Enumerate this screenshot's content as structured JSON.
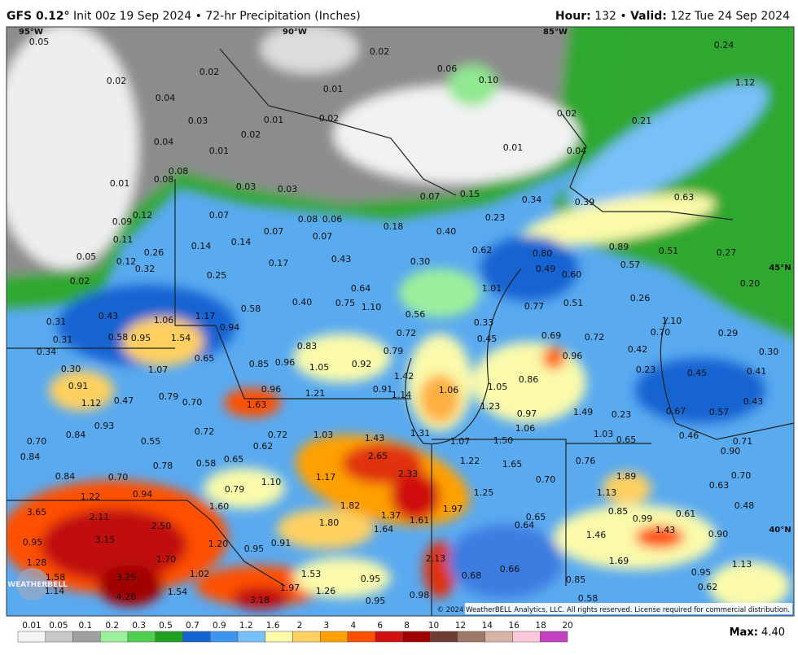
{
  "header": {
    "model": "GFS 0.12°",
    "init": "Init 00z 19 Sep 2024 • 72-hr Precipitation (Inches)",
    "hour_label": "Hour:",
    "hour": "132",
    "sep": "•",
    "valid_label": "Valid:",
    "valid": "12z Tue 24 Sep 2024"
  },
  "map": {
    "lon_labels": [
      "95°W",
      "90°W",
      "85°W"
    ],
    "lat_labels": [
      "45°N",
      "40°N"
    ],
    "values": [
      "0.05",
      "0.02",
      "0.04",
      "0.02",
      "0.02",
      "0.06",
      "0.10",
      "0.01",
      "0.02",
      "0.01",
      "0.03",
      "0.02",
      "0.04",
      "0.01",
      "0.01",
      "0.08",
      "0.08",
      "0.03",
      "0.03",
      "0.24",
      "1.12",
      "0.21",
      "0.02",
      "0.01",
      "0.04",
      "0.07",
      "0.15",
      "0.34",
      "0.39",
      "0.63",
      "0.09",
      "0.12",
      "0.07",
      "0.08",
      "0.06",
      "0.07",
      "0.07",
      "0.18",
      "0.23",
      "0.40",
      "0.11",
      "0.14",
      "0.14",
      "0.05",
      "0.26",
      "0.12",
      "0.32",
      "0.17",
      "0.43",
      "0.30",
      "0.62",
      "0.89",
      "0.51",
      "0.57",
      "0.27",
      "0.80",
      "0.49",
      "0.60",
      "0.02",
      "0.25",
      "0.20",
      "1.01",
      "0.64",
      "0.40",
      "0.75",
      "1.10",
      "0.77",
      "0.51",
      "0.26",
      "0.58",
      "0.56",
      "1.10",
      "0.31",
      "0.43",
      "1.06",
      "1.17",
      "0.33",
      "0.94",
      "0.72",
      "0.70",
      "0.29",
      "0.31",
      "0.58",
      "0.95",
      "1.54",
      "0.45",
      "0.69",
      "0.72",
      "0.34",
      "0.83",
      "0.79",
      "0.42",
      "0.30",
      "0.65",
      "0.85",
      "0.96",
      "1.05",
      "0.92",
      "0.96",
      "0.30",
      "1.07",
      "1.42",
      "0.86",
      "0.23",
      "0.45",
      "0.41",
      "0.91",
      "0.96",
      "1.21",
      "0.91",
      "1.14",
      "1.06",
      "1.05",
      "1.12",
      "0.47",
      "0.79",
      "0.70",
      "1.63",
      "1.23",
      "0.97",
      "1.49",
      "0.23",
      "0.67",
      "0.57",
      "0.43",
      "0.93",
      "0.72",
      "1.06",
      "0.84",
      "0.72",
      "1.03",
      "1.31",
      "1.03",
      "0.46",
      "0.70",
      "0.55",
      "1.43",
      "1.07",
      "1.50",
      "0.65",
      "0.71",
      "0.62",
      "0.90",
      "0.84",
      "2.65",
      "1.22",
      "1.65",
      "0.76",
      "0.78",
      "0.58",
      "0.65",
      "0.84",
      "0.70",
      "1.10",
      "1.17",
      "2.33",
      "0.70",
      "1.89",
      "0.70",
      "0.79",
      "1.25",
      "1.13",
      "0.63",
      "1.22",
      "0.94",
      "1.60",
      "1.82",
      "1.97",
      "0.85",
      "0.48",
      "3.65",
      "2.11",
      "1.37",
      "1.61",
      "0.65",
      "0.99",
      "0.61",
      "1.80",
      "2.50",
      "0.64",
      "1.64",
      "1.43",
      "0.90",
      "1.46",
      "3.15",
      "0.95",
      "1.20",
      "0.91",
      "0.95",
      "1.70",
      "2.13",
      "1.69",
      "1.28",
      "0.66",
      "0.95",
      "1.13",
      "1.58",
      "3.25",
      "1.02",
      "1.53",
      "0.68",
      "0.95",
      "0.62",
      "1.14",
      "1.54",
      "1.97",
      "1.26",
      "0.85",
      "4.26",
      "3.18",
      "0.95",
      "0.98",
      "0.58"
    ],
    "copyright": "© 2024 WeatherBELL Analytics, LLC. All rights reserved. License required for commercial distribution.",
    "logo": "WEATHERBELL"
  },
  "colorbar": {
    "labels": [
      "0.01",
      "0.05",
      "0.1",
      "0.2",
      "0.3",
      "0.5",
      "0.7",
      "0.9",
      "1.2",
      "1.6",
      "2",
      "3",
      "4",
      "6",
      "8",
      "10",
      "12",
      "14",
      "16",
      "18",
      "20"
    ],
    "colors": [
      "#f4f4f4",
      "#c8c8c8",
      "#a0a0a0",
      "#9cf09c",
      "#50d050",
      "#20a020",
      "#1464d2",
      "#3c96f0",
      "#78c0f8",
      "#fafaaa",
      "#ffd060",
      "#ffa000",
      "#ff5000",
      "#d01010",
      "#a00000",
      "#6e3c32",
      "#a07868",
      "#d8b4a8",
      "#ffc8d8",
      "#c040c0"
    ]
  },
  "max": {
    "label": "Max:",
    "value": "4.40"
  }
}
